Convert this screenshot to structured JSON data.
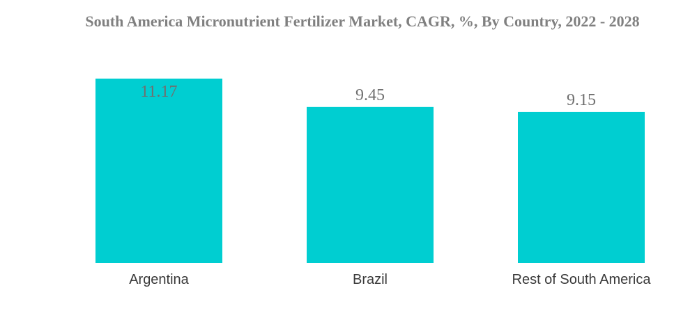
{
  "chart_data": {
    "type": "bar",
    "title": "South America Micronutrient Fertilizer Market, CAGR, %, By Country, 2022 - 2028",
    "categories": [
      "Argentina",
      "Brazil",
      "Rest of South America"
    ],
    "values": [
      11.17,
      9.45,
      9.15
    ],
    "xlabel": "",
    "ylabel": "",
    "ylim": [
      0,
      11.17
    ],
    "grid": false,
    "bar_color": "#00CED1",
    "label_color": "#6f6f6f"
  }
}
